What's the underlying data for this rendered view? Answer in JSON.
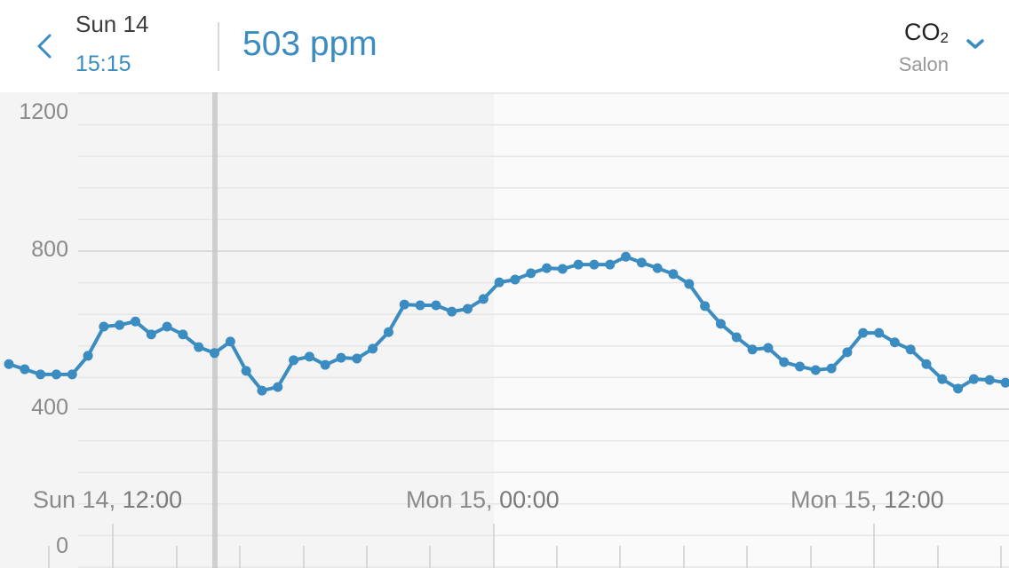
{
  "header": {
    "back_label": "back",
    "date": "Sun 14",
    "time": "15:15",
    "value": "503 ppm",
    "sensor_name": "CO",
    "sensor_sub": "2",
    "sensor_room": "Salon"
  },
  "colors": {
    "accent": "#3a8cc1",
    "line": "#3a8cc1",
    "past_bg": "#f4f4f4",
    "future_bg": "#fafafa",
    "grid": "#e6e6e6",
    "grid_major": "#d0d0d0",
    "cursor": "#c8c8c8"
  },
  "chart_data": {
    "type": "line",
    "title": "CO2 Salon",
    "ylabel": "ppm",
    "ylim": [
      0,
      1200
    ],
    "yticks": [
      "1200",
      "800",
      "400",
      "0"
    ],
    "xticks": [
      {
        "day": "Sun 14, ",
        "hour": "12:00"
      },
      {
        "day": "Mon 15, ",
        "hour": "00:00"
      },
      {
        "day": "Mon 15, ",
        "hour": "12:00"
      }
    ],
    "grid": true,
    "selected": {
      "time": "Sun 14 15:15",
      "value": 503
    },
    "values": [
      514,
      501,
      488,
      488,
      488,
      535,
      609,
      613,
      622,
      589,
      609,
      589,
      557,
      542,
      571,
      497,
      447,
      456,
      524,
      533,
      512,
      530,
      528,
      553,
      595,
      665,
      663,
      663,
      647,
      654,
      679,
      721,
      728,
      744,
      757,
      755,
      766,
      766,
      766,
      786,
      771,
      757,
      742,
      717,
      661,
      616,
      582,
      551,
      555,
      519,
      508,
      499,
      503,
      544,
      593,
      593,
      569,
      551,
      514,
      476,
      452,
      476,
      474,
      467
    ]
  }
}
